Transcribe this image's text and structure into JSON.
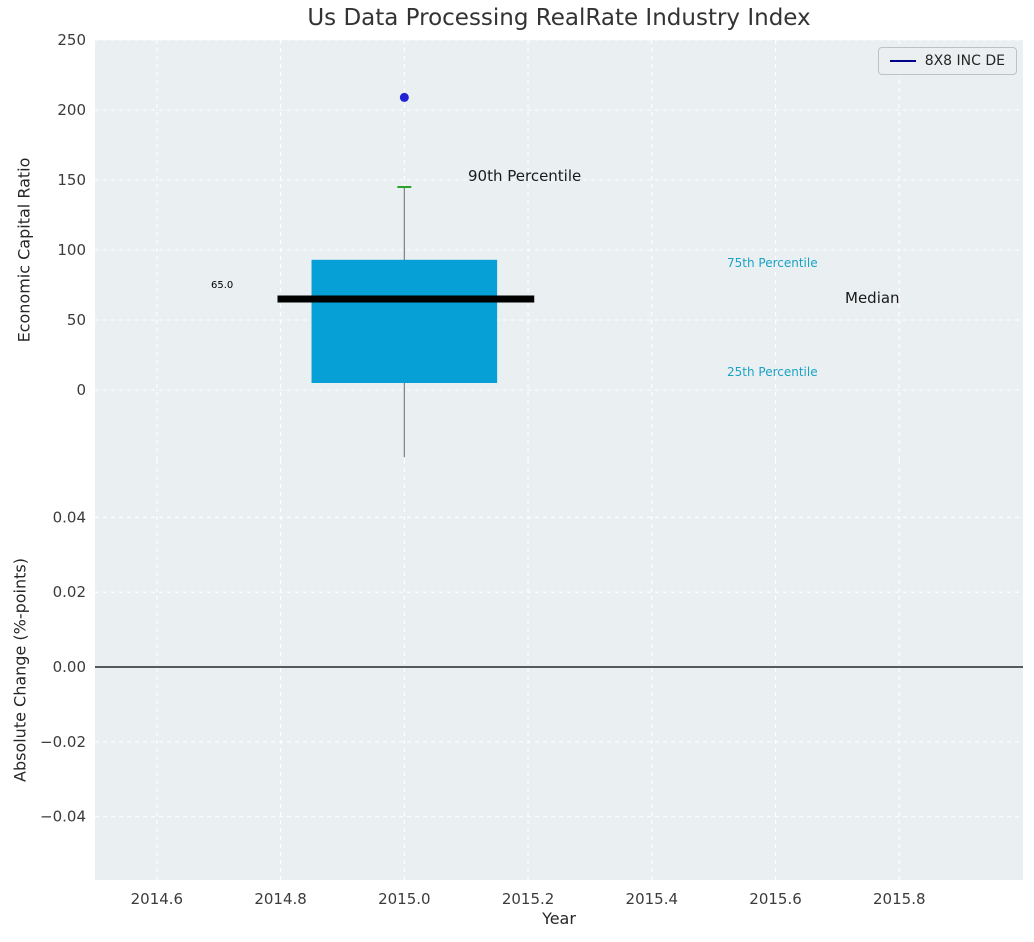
{
  "title": "Us Data Processing RealRate Industry Index",
  "legend": {
    "label": "8X8 INC DE",
    "line_color": "#00008b"
  },
  "axes": {
    "top": {
      "ylabel": "Economic Capital Ratio",
      "ytick_values": [
        0,
        50,
        100,
        150,
        200,
        250
      ],
      "ytick_labels": [
        "0",
        "50",
        "100",
        "150",
        "200",
        "250"
      ],
      "ylim": [
        -50,
        250
      ]
    },
    "bottom": {
      "ylabel": "Absolute Change (%-points)",
      "ytick_values": [
        -0.04,
        -0.02,
        0.0,
        0.02,
        0.04
      ],
      "ytick_labels": [
        "−0.04",
        "−0.02",
        "0.00",
        "0.02",
        "0.04"
      ],
      "ylim": [
        -0.0569,
        0.0553
      ]
    },
    "x": {
      "label": "Year",
      "tick_values": [
        2014.6,
        2014.8,
        2015.0,
        2015.2,
        2015.4,
        2015.6,
        2015.8
      ],
      "tick_labels": [
        "2014.6",
        "2014.8",
        "2015.0",
        "2015.2",
        "2015.4",
        "2015.6",
        "2015.8"
      ],
      "lim": [
        2014.5,
        2016.0
      ]
    }
  },
  "annotations": {
    "p90": "90th Percentile",
    "p75": "75th Percentile",
    "median": "Median",
    "p25": "25th Percentile",
    "median_value_label": "65.0"
  },
  "chart_data": {
    "type": "box",
    "title": "Us Data Processing RealRate Industry Index",
    "xlabel": "Year",
    "ylabel_top": "Economic Capital Ratio",
    "ylabel_bottom": "Absolute Change (%-points)",
    "series_label": "8X8 INC DE",
    "box": {
      "x": 2015.0,
      "width": 0.3,
      "q1": 5,
      "median": 65,
      "q3": 93,
      "p90": 145,
      "whisker_low_end": -48,
      "median_line_span": [
        2014.795,
        2015.21
      ],
      "median_label": "65.0"
    },
    "outlier_point": {
      "x": 2015.0,
      "y": 209
    },
    "bottom_zero_line": 0.0,
    "colors": {
      "box": "#069fd6",
      "median": "#000000",
      "whisker": "#7f7f7f",
      "cap": "#2ca02c",
      "point": "#2222d4",
      "legend_line": "#00008b",
      "percentile_text": "#1ba3c6",
      "axes_bg": "#eaeff1",
      "grid": "#ffffff",
      "tick_text": "#3b3b3b",
      "zero_line": "#000000"
    }
  }
}
